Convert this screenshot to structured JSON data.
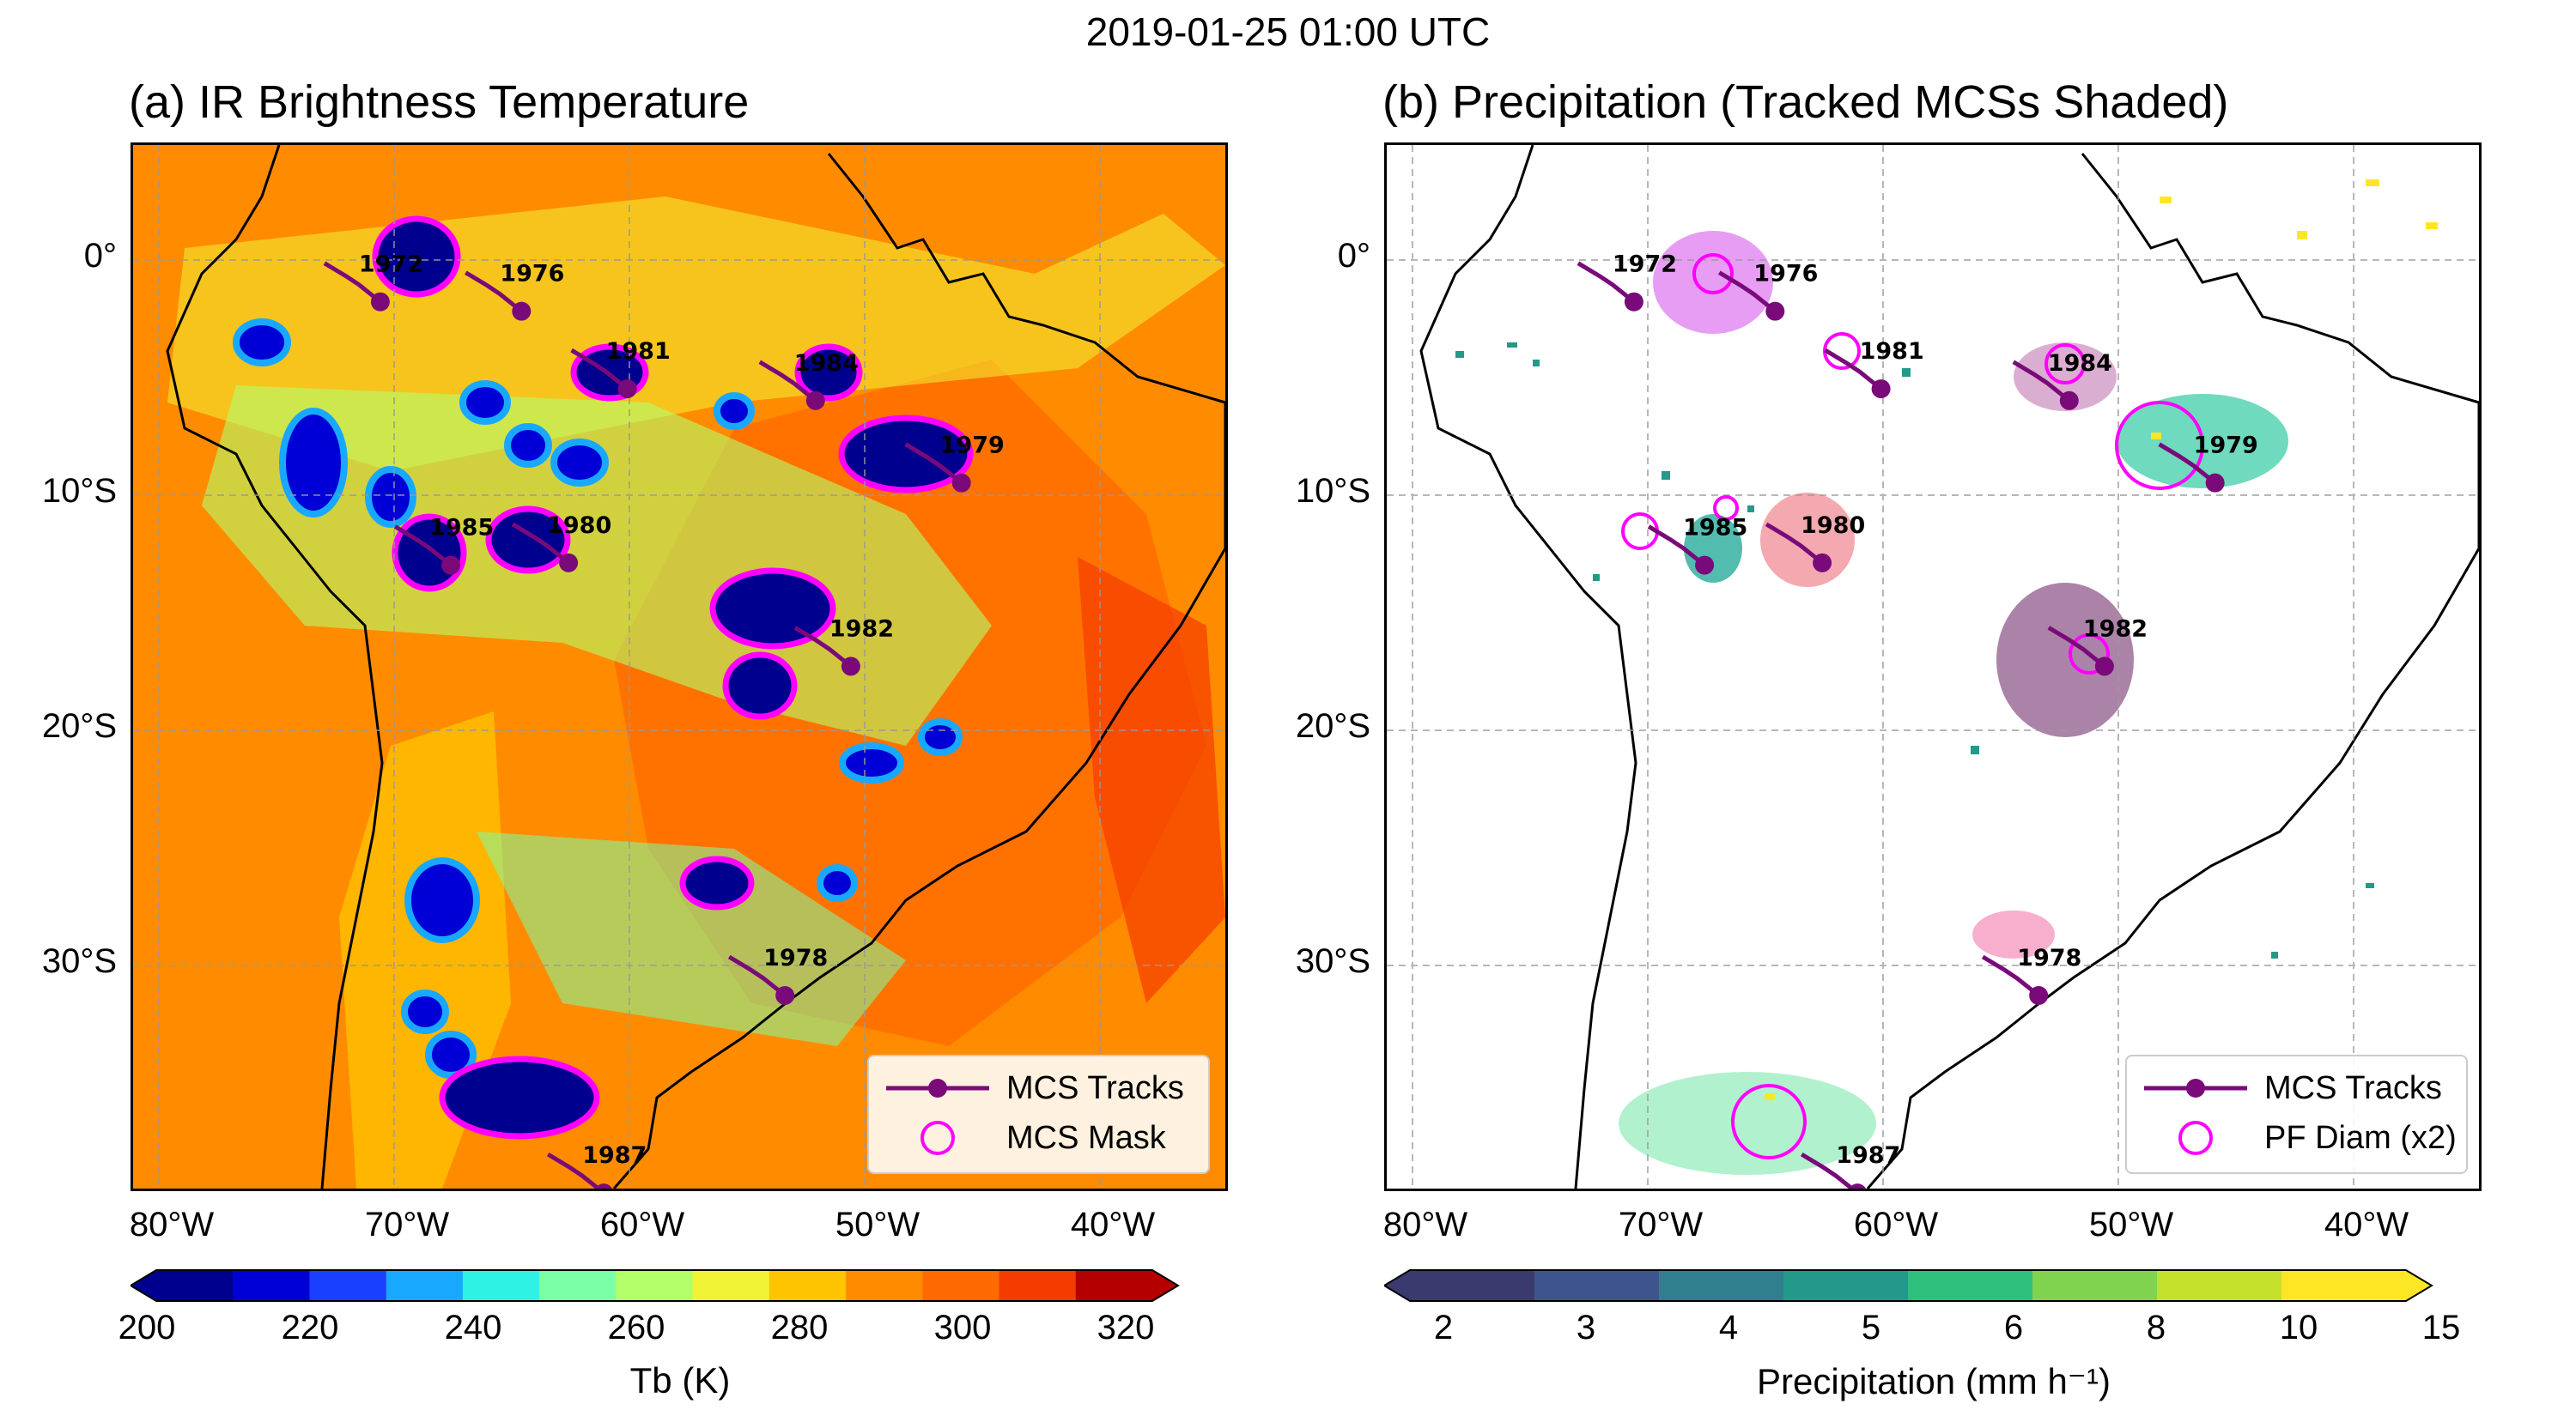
{
  "figure_title": "2019-01-25 01:00 UTC",
  "panel_a": {
    "title": "(a) IR Brightness Temperature",
    "legend": {
      "tracks": "MCS Tracks",
      "mask": "MCS Mask"
    },
    "colorbar": {
      "label": "Tb (K)",
      "ticks": [
        "200",
        "220",
        "240",
        "260",
        "280",
        "300",
        "320"
      ],
      "colors": [
        "#00008f",
        "#0000d6",
        "#1a40ff",
        "#19a8ff",
        "#2ef2e4",
        "#7bffa6",
        "#b2ff6a",
        "#f0f236",
        "#ffc400",
        "#ff8c00",
        "#ff6a00",
        "#f53c00",
        "#b50000"
      ]
    }
  },
  "panel_b": {
    "title": "(b) Precipitation (Tracked MCSs Shaded)",
    "legend": {
      "tracks": "MCS Tracks",
      "pf": "PF Diam (x2)"
    },
    "colorbar": {
      "label": "Precipitation (mm h⁻¹)",
      "ticks": [
        "2",
        "3",
        "4",
        "5",
        "6",
        "8",
        "10",
        "15"
      ],
      "colors": [
        "#3b3a6e",
        "#3d558c",
        "#2f7f8e",
        "#23998a",
        "#2fbf7d",
        "#7fd34e",
        "#c5e02b",
        "#fde725"
      ]
    }
  },
  "axes": {
    "lat_labels": [
      "0°",
      "10°S",
      "20°S",
      "30°S"
    ],
    "lon_labels": [
      "80°W",
      "70°W",
      "60°W",
      "50°W",
      "40°W"
    ]
  },
  "tracks": [
    {
      "id": "1972",
      "lon": -73.5,
      "lat": -0.5
    },
    {
      "id": "1976",
      "lon": -67.5,
      "lat": -0.9
    },
    {
      "id": "1981",
      "lon": -63.0,
      "lat": -4.2
    },
    {
      "id": "1984",
      "lon": -55.0,
      "lat": -4.7
    },
    {
      "id": "1979",
      "lon": -48.8,
      "lat": -8.2
    },
    {
      "id": "1985",
      "lon": -70.5,
      "lat": -11.7
    },
    {
      "id": "1980",
      "lon": -65.5,
      "lat": -11.6
    },
    {
      "id": "1982",
      "lon": -53.5,
      "lat": -16.0
    },
    {
      "id": "1978",
      "lon": -56.3,
      "lat": -30.0
    },
    {
      "id": "1987",
      "lon": -64.0,
      "lat": -38.4
    }
  ],
  "colors": {
    "track": "#7a0a7a",
    "mask": "#ff00ff",
    "ocean_a": "#ff8c00"
  }
}
